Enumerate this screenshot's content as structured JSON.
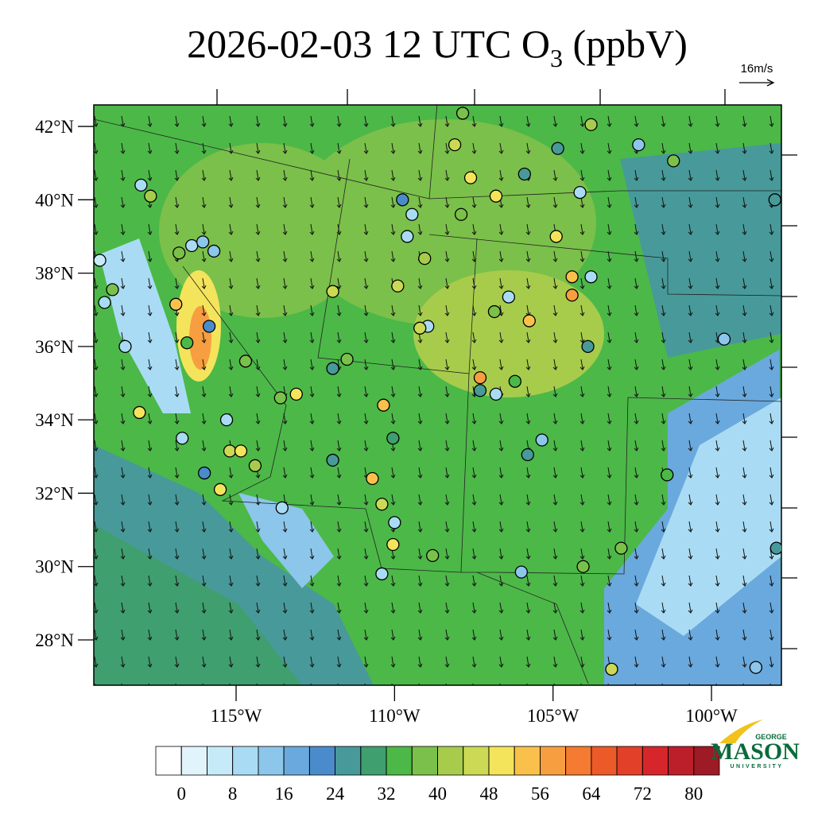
{
  "title": {
    "main": "2026-02-03 12 UTC O",
    "subscript": "3",
    "suffix": " (ppbV)"
  },
  "wind_reference": "16m/s",
  "lat_ticks": [
    {
      "value": 42,
      "label": "42°N"
    },
    {
      "value": 40,
      "label": "40°N"
    },
    {
      "value": 38,
      "label": "38°N"
    },
    {
      "value": 36,
      "label": "36°N"
    },
    {
      "value": 34,
      "label": "34°N"
    },
    {
      "value": 32,
      "label": "32°N"
    },
    {
      "value": 30,
      "label": "30°N"
    },
    {
      "value": 28,
      "label": "28°N"
    }
  ],
  "lon_ticks": [
    {
      "value": 115,
      "label": "115°W"
    },
    {
      "value": 110,
      "label": "110°W"
    },
    {
      "value": 105,
      "label": "105°W"
    },
    {
      "value": 100,
      "label": "100°W"
    }
  ],
  "colorbar": {
    "levels": [
      0,
      4,
      8,
      12,
      16,
      20,
      24,
      28,
      32,
      36,
      40,
      44,
      48,
      52,
      56,
      60,
      64,
      68,
      72,
      76,
      80
    ],
    "ticks": [
      0,
      8,
      16,
      24,
      32,
      40,
      48,
      56,
      64,
      72,
      80
    ],
    "colors": [
      "#ffffff",
      "#e2f4fb",
      "#c7eaf8",
      "#a9dcf4",
      "#8cc6ea",
      "#6aa9dd",
      "#4a8ccb",
      "#479a99",
      "#3f9f6f",
      "#4cb848",
      "#7bc04a",
      "#a7cc4c",
      "#cbd955",
      "#f4e45b",
      "#f9c14b",
      "#f79f40",
      "#f47b31",
      "#ec5a29",
      "#e3402a",
      "#d6262b",
      "#bd1f2a",
      "#9e1a24"
    ]
  },
  "stations": [
    {
      "lon": 118.0,
      "lat": 40.4,
      "value": 10
    },
    {
      "lon": 117.7,
      "lat": 40.1,
      "value": 42
    },
    {
      "lon": 107.85,
      "lat": 42.36,
      "value": 36
    },
    {
      "lon": 108.1,
      "lat": 41.5,
      "value": 44
    },
    {
      "lon": 104.85,
      "lat": 41.4,
      "value": 24
    },
    {
      "lon": 103.8,
      "lat": 42.05,
      "value": 42
    },
    {
      "lon": 102.3,
      "lat": 41.5,
      "value": 12
    },
    {
      "lon": 101.2,
      "lat": 41.06,
      "value": 36
    },
    {
      "lon": 107.6,
      "lat": 40.6,
      "value": 48
    },
    {
      "lon": 106.8,
      "lat": 40.1,
      "value": 48
    },
    {
      "lon": 105.9,
      "lat": 40.7,
      "value": 26
    },
    {
      "lon": 104.15,
      "lat": 40.2,
      "value": 10
    },
    {
      "lon": 98.0,
      "lat": 40.0,
      "value": 24
    },
    {
      "lon": 109.75,
      "lat": 40.0,
      "value": 22
    },
    {
      "lon": 109.45,
      "lat": 39.6,
      "value": 10
    },
    {
      "lon": 109.6,
      "lat": 39.0,
      "value": 8
    },
    {
      "lon": 111.95,
      "lat": 37.5,
      "value": 46
    },
    {
      "lon": 109.9,
      "lat": 37.65,
      "value": 46
    },
    {
      "lon": 109.05,
      "lat": 38.4,
      "value": 42
    },
    {
      "lon": 104.9,
      "lat": 39.0,
      "value": 48
    },
    {
      "lon": 104.4,
      "lat": 37.9,
      "value": 54
    },
    {
      "lon": 104.4,
      "lat": 37.4,
      "value": 56
    },
    {
      "lon": 103.8,
      "lat": 37.9,
      "value": 10
    },
    {
      "lon": 106.4,
      "lat": 37.35,
      "value": 8
    },
    {
      "lon": 105.75,
      "lat": 36.7,
      "value": 52
    },
    {
      "lon": 103.9,
      "lat": 36.0,
      "value": 26
    },
    {
      "lon": 99.6,
      "lat": 36.2,
      "value": 14
    },
    {
      "lon": 107.3,
      "lat": 35.15,
      "value": 56
    },
    {
      "lon": 107.3,
      "lat": 34.8,
      "value": 24
    },
    {
      "lon": 106.8,
      "lat": 34.7,
      "value": 10
    },
    {
      "lon": 106.2,
      "lat": 35.05,
      "value": 34
    },
    {
      "lon": 110.35,
      "lat": 34.4,
      "value": 54
    },
    {
      "lon": 110.05,
      "lat": 33.5,
      "value": 30
    },
    {
      "lon": 111.95,
      "lat": 32.9,
      "value": 24
    },
    {
      "lon": 110.7,
      "lat": 32.4,
      "value": 52
    },
    {
      "lon": 110.4,
      "lat": 31.7,
      "value": 44
    },
    {
      "lon": 110.0,
      "lat": 31.2,
      "value": 10
    },
    {
      "lon": 110.05,
      "lat": 30.6,
      "value": 48
    },
    {
      "lon": 110.4,
      "lat": 29.8,
      "value": 10
    },
    {
      "lon": 108.8,
      "lat": 30.3,
      "value": 36
    },
    {
      "lon": 106.0,
      "lat": 29.85,
      "value": 12
    },
    {
      "lon": 105.8,
      "lat": 33.05,
      "value": 24
    },
    {
      "lon": 105.35,
      "lat": 33.45,
      "value": 14
    },
    {
      "lon": 104.05,
      "lat": 30.0,
      "value": 38
    },
    {
      "lon": 102.85,
      "lat": 30.5,
      "value": 36
    },
    {
      "lon": 101.4,
      "lat": 32.5,
      "value": 34
    },
    {
      "lon": 103.15,
      "lat": 27.2,
      "value": 44
    },
    {
      "lon": 97.95,
      "lat": 30.5,
      "value": 24
    },
    {
      "lon": 98.6,
      "lat": 27.25,
      "value": 12
    },
    {
      "lon": 115.85,
      "lat": 36.55,
      "value": 22
    },
    {
      "lon": 116.9,
      "lat": 37.15,
      "value": 52
    },
    {
      "lon": 116.55,
      "lat": 36.1,
      "value": 34
    },
    {
      "lon": 118.05,
      "lat": 34.2,
      "value": 48
    },
    {
      "lon": 115.2,
      "lat": 33.15,
      "value": 46
    },
    {
      "lon": 114.85,
      "lat": 33.15,
      "value": 48
    },
    {
      "lon": 115.5,
      "lat": 32.1,
      "value": 48
    },
    {
      "lon": 114.4,
      "lat": 32.75,
      "value": 42
    },
    {
      "lon": 113.55,
      "lat": 31.6,
      "value": 10
    },
    {
      "lon": 115.3,
      "lat": 34.0,
      "value": 8
    },
    {
      "lon": 116.7,
      "lat": 33.5,
      "value": 10
    },
    {
      "lon": 116.0,
      "lat": 32.55,
      "value": 22
    },
    {
      "lon": 118.9,
      "lat": 37.55,
      "value": 36
    },
    {
      "lon": 118.5,
      "lat": 36.0,
      "value": 8
    },
    {
      "lon": 119.15,
      "lat": 37.2,
      "value": 10
    },
    {
      "lon": 119.3,
      "lat": 38.35,
      "value": 4
    },
    {
      "lon": 113.1,
      "lat": 34.7,
      "value": 48
    },
    {
      "lon": 113.6,
      "lat": 34.6,
      "value": 36
    },
    {
      "lon": 114.7,
      "lat": 35.6,
      "value": 38
    },
    {
      "lon": 111.5,
      "lat": 35.65,
      "value": 36
    },
    {
      "lon": 111.95,
      "lat": 35.4,
      "value": 24
    },
    {
      "lon": 108.95,
      "lat": 36.55,
      "value": 10
    },
    {
      "lon": 109.2,
      "lat": 36.5,
      "value": 44
    },
    {
      "lon": 106.85,
      "lat": 36.95,
      "value": 36
    },
    {
      "lon": 107.9,
      "lat": 39.6,
      "value": 36
    },
    {
      "lon": 116.4,
      "lat": 38.75,
      "value": 10
    },
    {
      "lon": 116.05,
      "lat": 38.85,
      "value": 14
    },
    {
      "lon": 115.7,
      "lat": 38.6,
      "value": 12
    },
    {
      "lon": 116.8,
      "lat": 38.55,
      "value": 36
    }
  ],
  "logo": {
    "top": "GEORGE",
    "name": "MASON",
    "bottom": "UNIVERSITY"
  }
}
